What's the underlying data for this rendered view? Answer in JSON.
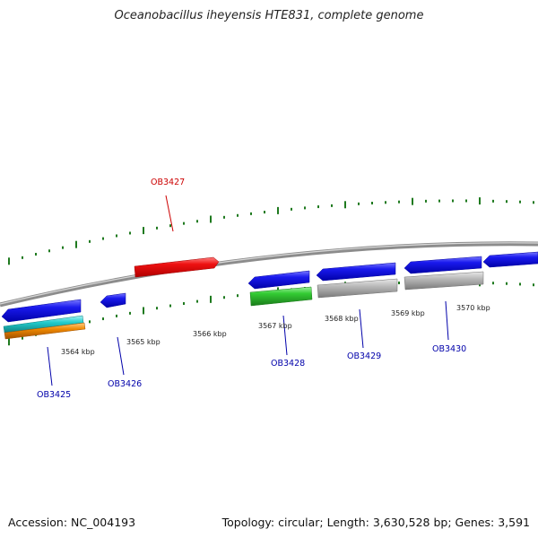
{
  "title": "Oceanobacillus iheyensis HTE831, complete genome",
  "footer": {
    "accession": "Accession: NC_004193",
    "summary": "Topology: circular; Length: 3,630,528 bp; Genes: 3,591"
  },
  "colors": {
    "backbone": "#8c8c8c",
    "tick": "#1f7a1f",
    "label_forward": "#cc0000",
    "label_reverse": "#0000aa",
    "gene_blue": "#1a1aee",
    "gene_red": "#ee1111",
    "gene_green": "#33cc33",
    "gene_grey": "#b4b4b4",
    "gene_cyan": "#22cccc",
    "gene_orange": "#ee8800"
  },
  "kbp_labels": [
    "3564 kbp",
    "3565 kbp",
    "3566 kbp",
    "3567 kbp",
    "3568 kbp",
    "3569 kbp",
    "3570 kbp"
  ],
  "gene_labels": [
    {
      "name": "OB3427",
      "strand": "forward"
    },
    {
      "name": "OB3425",
      "strand": "reverse"
    },
    {
      "name": "OB3426",
      "strand": "reverse"
    },
    {
      "name": "OB3428",
      "strand": "reverse"
    },
    {
      "name": "OB3429",
      "strand": "reverse"
    },
    {
      "name": "OB3430",
      "strand": "reverse"
    }
  ]
}
